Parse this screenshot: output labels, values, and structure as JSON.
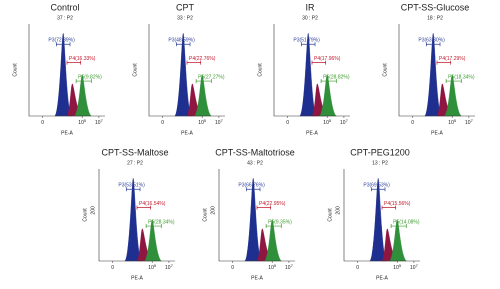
{
  "panels": [
    {
      "title": "Control",
      "subtitle": "37 : P2",
      "gates": [
        "P3(72.89%)",
        "P4(16.33%)",
        "P5(9.82%)"
      ]
    },
    {
      "title": "CPT",
      "subtitle": "33 : P2",
      "gates": [
        "P3(48.59%)",
        "P4(22.76%)",
        "P5(27.27%)"
      ]
    },
    {
      "title": "IR",
      "subtitle": "30 : P2",
      "gates": [
        "P3(51.79%)",
        "P4(17.96%)",
        "P5(28.82%)"
      ]
    },
    {
      "title": "CPT-SS-Glucose",
      "subtitle": "18 : P2",
      "gates": [
        "P3(63.30%)",
        "P4(17.29%)",
        "P5(18.34%)"
      ]
    },
    {
      "title": "CPT-SS-Maltose",
      "subtitle": "27 : P2",
      "gates": [
        "P3(53.51%)",
        "P4(16.54%)",
        "P5(28.34%)"
      ],
      "ytick": "200"
    },
    {
      "title": "CPT-SS-Maltotriose",
      "subtitle": "43 : P2",
      "gates": [
        "P3(66.76%)",
        "P4(22.95%)",
        "P5(9.35%)"
      ],
      "ytick": "200"
    },
    {
      "title": "CPT-PEG1200",
      "subtitle": "13 : P2",
      "gates": [
        "P3(69.53%)",
        "P4(15.56%)",
        "P5(14.08%)"
      ],
      "ytick": "200"
    }
  ],
  "axis": {
    "y_label": "Count",
    "x_label": "PE-A",
    "x_ticks": [
      {
        "base": "0"
      },
      {
        "base": "10",
        "exp": "5"
      },
      {
        "base": "10",
        "exp": "7"
      }
    ]
  }
}
